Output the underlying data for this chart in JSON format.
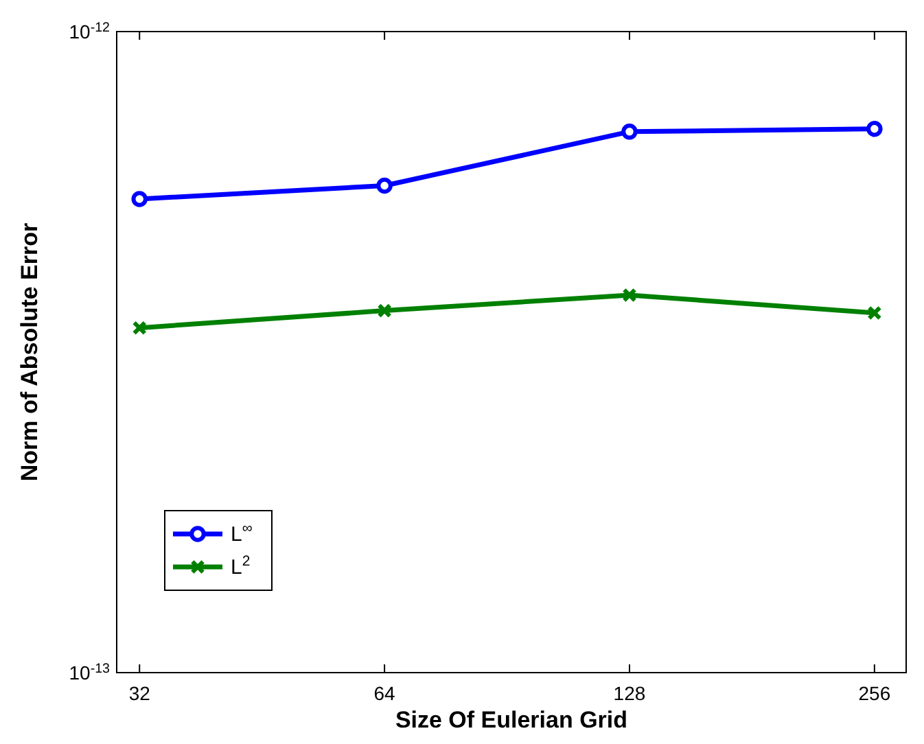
{
  "chart_data": {
    "type": "line",
    "xlabel": "Size Of Eulerian Grid",
    "ylabel": "Norm of Absolute Error",
    "log": "xy",
    "x": [
      32,
      64,
      128,
      256
    ],
    "xlim": [
      30,
      280
    ],
    "xticks": [
      32,
      64,
      128,
      256
    ],
    "ylim": [
      1e-13,
      1e-12
    ],
    "yticks": [
      {
        "value": 1e-13,
        "label": "10$^{-13}$"
      },
      {
        "value": 1e-12,
        "label": "10$^{-12}$"
      }
    ],
    "series": [
      {
        "name": "L$^{∞}$",
        "color": "#0000ff",
        "marker": "circle",
        "values": [
          5.48e-13,
          5.75e-13,
          6.98e-13,
          7.05e-13
        ]
      },
      {
        "name": "L$^{2}$",
        "color": "#008000",
        "marker": "cross",
        "values": [
          3.45e-13,
          3.67e-13,
          3.88e-13,
          3.64e-13
        ]
      }
    ],
    "grid": false,
    "legend": "bottom left"
  }
}
